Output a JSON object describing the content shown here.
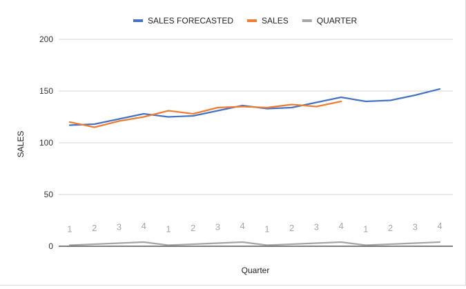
{
  "chart_data": {
    "type": "line",
    "title": "",
    "xlabel": "Quarter",
    "ylabel": "SALES",
    "ylim": [
      0,
      200
    ],
    "yticks": [
      0,
      50,
      100,
      150,
      200
    ],
    "grid": true,
    "legend_position": "top",
    "categories": [
      "1",
      "2",
      "3",
      "4",
      "1",
      "2",
      "3",
      "4",
      "1",
      "2",
      "3",
      "4",
      "1",
      "2",
      "3",
      "4"
    ],
    "series": [
      {
        "name": "SALES FORECASTED",
        "color": "#4472c4",
        "values": [
          117,
          118,
          123,
          128,
          125,
          126,
          131,
          136,
          133,
          134,
          139,
          144,
          140,
          141,
          146,
          152
        ]
      },
      {
        "name": "SALES",
        "color": "#ed7d31",
        "values": [
          120,
          115,
          121,
          125,
          131,
          128,
          134,
          135,
          134,
          137,
          135,
          140,
          null,
          null,
          null,
          null
        ]
      },
      {
        "name": "QUARTER",
        "color": "#a5a5a5",
        "values": [
          1,
          2,
          3,
          4,
          1,
          2,
          3,
          4,
          1,
          2,
          3,
          4,
          1,
          2,
          3,
          4
        ],
        "data_labels": true
      }
    ]
  }
}
